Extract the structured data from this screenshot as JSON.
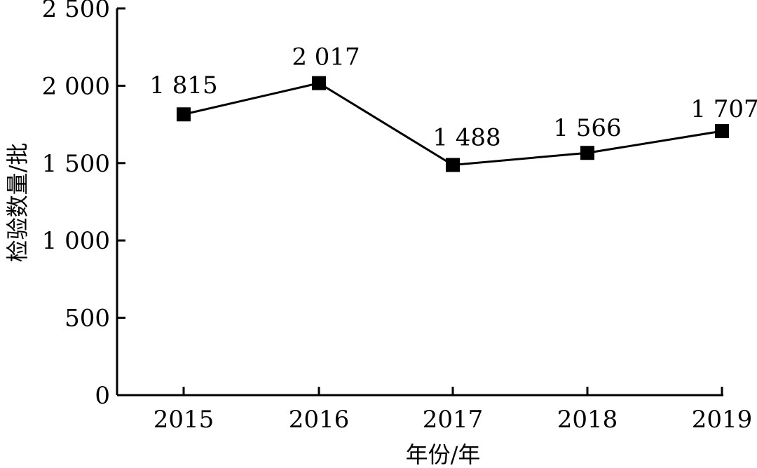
{
  "chart_data": {
    "type": "line",
    "categories": [
      "2015",
      "2016",
      "2017",
      "2018",
      "2019"
    ],
    "series": [
      {
        "values": [
          1815,
          2017,
          1488,
          1566,
          1707
        ],
        "data_labels": [
          "1 815",
          "2 017",
          "1 488",
          "1 566",
          "1 707"
        ],
        "color": "#000000",
        "marker": "square"
      }
    ],
    "xlabel": "年份/年",
    "ylabel": "检验数量/批",
    "ylim": [
      0,
      2500
    ],
    "yticks": [
      0,
      500,
      1000,
      1500,
      2000,
      2500
    ],
    "ytick_labels": [
      "0",
      "500",
      "1 000",
      "1 500",
      "2 000",
      "2 500"
    ],
    "grid": false
  }
}
